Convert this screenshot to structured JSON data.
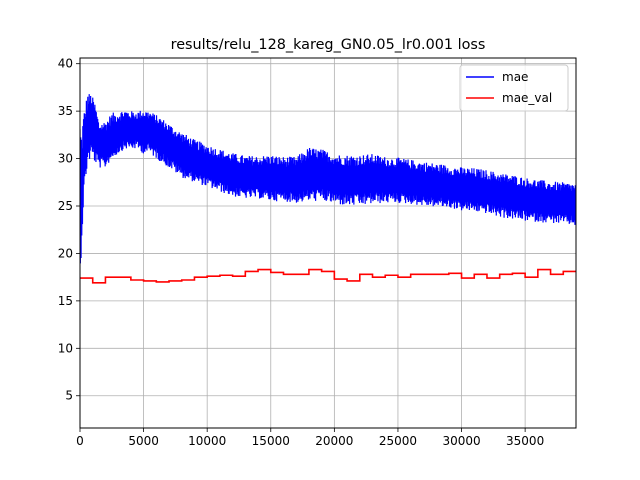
{
  "chart_data": {
    "type": "line",
    "title": "results/relu_128_kareg_GN0.05_lr0.001 loss",
    "xlabel": "",
    "ylabel": "",
    "xlim": [
      0,
      39000
    ],
    "ylim": [
      1.6,
      40.6
    ],
    "xticks": [
      0,
      5000,
      10000,
      15000,
      20000,
      25000,
      30000,
      35000
    ],
    "xtick_labels": [
      "0",
      "5000",
      "10000",
      "15000",
      "20000",
      "25000",
      "30000",
      "35000"
    ],
    "yticks": [
      5,
      10,
      15,
      20,
      25,
      30,
      35,
      40
    ],
    "ytick_labels": [
      "5",
      "10",
      "15",
      "20",
      "25",
      "30",
      "35",
      "40"
    ],
    "grid": true,
    "legend_position": "top-right",
    "series": [
      {
        "name": "mae",
        "color": "#0000ff",
        "style": "noisy-band",
        "x": [
          0,
          100,
          300,
          600,
          900,
          1200,
          1500,
          2000,
          2500,
          3000,
          3500,
          4000,
          4500,
          5000,
          5500,
          6000,
          6500,
          7000,
          7500,
          8000,
          9000,
          10000,
          11000,
          12000,
          13000,
          14000,
          15000,
          16000,
          17000,
          18000,
          19000,
          20000,
          21000,
          22000,
          23000,
          24000,
          25000,
          26000,
          27000,
          28000,
          29000,
          30000,
          31000,
          32000,
          33000,
          34000,
          35000,
          36000,
          37000,
          38000,
          39000
        ],
        "mean": [
          20.0,
          25.0,
          30.0,
          33.0,
          34.0,
          33.0,
          31.5,
          31.5,
          32.0,
          32.5,
          33.0,
          33.0,
          33.0,
          33.0,
          33.0,
          32.5,
          32.0,
          31.5,
          31.0,
          30.5,
          29.7,
          29.3,
          28.8,
          28.3,
          28.0,
          28.0,
          28.0,
          27.8,
          27.7,
          28.3,
          28.5,
          28.0,
          27.8,
          27.8,
          28.0,
          27.8,
          27.8,
          27.5,
          27.3,
          27.2,
          27.0,
          26.8,
          26.7,
          26.5,
          26.2,
          26.0,
          25.8,
          25.5,
          25.4,
          25.3,
          25.2
        ],
        "low": [
          17.0,
          20.0,
          26.0,
          29.5,
          30.0,
          29.5,
          29.0,
          29.0,
          30.0,
          30.5,
          31.0,
          31.0,
          31.0,
          30.5,
          30.5,
          30.0,
          29.5,
          29.0,
          28.5,
          28.0,
          27.5,
          27.0,
          26.5,
          26.0,
          25.8,
          25.8,
          25.5,
          25.5,
          25.3,
          25.5,
          25.5,
          25.2,
          25.0,
          25.0,
          25.2,
          25.3,
          25.3,
          25.2,
          25.0,
          24.9,
          24.8,
          24.5,
          24.4,
          24.2,
          23.8,
          23.6,
          23.4,
          23.3,
          23.2,
          23.1,
          22.9
        ],
        "high": [
          35.5,
          33.0,
          35.0,
          37.0,
          36.8,
          35.8,
          33.8,
          34.0,
          34.8,
          35.0,
          35.2,
          35.0,
          35.0,
          35.2,
          35.0,
          34.6,
          34.2,
          33.7,
          33.2,
          32.8,
          32.0,
          31.5,
          31.0,
          30.6,
          30.3,
          30.3,
          30.4,
          30.2,
          30.2,
          31.2,
          31.0,
          30.5,
          30.4,
          30.4,
          30.5,
          30.2,
          30.1,
          29.9,
          29.7,
          29.5,
          29.3,
          29.1,
          29.0,
          28.8,
          28.5,
          28.3,
          28.0,
          27.8,
          27.6,
          27.5,
          27.4
        ]
      },
      {
        "name": "mae_val",
        "color": "#ff0000",
        "style": "step",
        "x": [
          0,
          1000,
          2000,
          3000,
          4000,
          5000,
          6000,
          7000,
          8000,
          9000,
          10000,
          11000,
          12000,
          13000,
          14000,
          15000,
          16000,
          17000,
          18000,
          19000,
          20000,
          21000,
          22000,
          23000,
          24000,
          25000,
          26000,
          27000,
          28000,
          29000,
          30000,
          31000,
          32000,
          33000,
          34000,
          35000,
          36000,
          37000,
          38000
        ],
        "y": [
          17.4,
          16.9,
          17.5,
          17.5,
          17.2,
          17.1,
          17.0,
          17.1,
          17.2,
          17.5,
          17.6,
          17.7,
          17.6,
          18.1,
          18.3,
          18.0,
          17.8,
          17.8,
          18.3,
          18.1,
          17.3,
          17.1,
          17.8,
          17.5,
          17.7,
          17.5,
          17.8,
          17.8,
          17.8,
          17.9,
          17.4,
          17.8,
          17.4,
          17.8,
          17.9,
          17.5,
          18.3,
          17.8,
          18.1
        ]
      }
    ]
  }
}
